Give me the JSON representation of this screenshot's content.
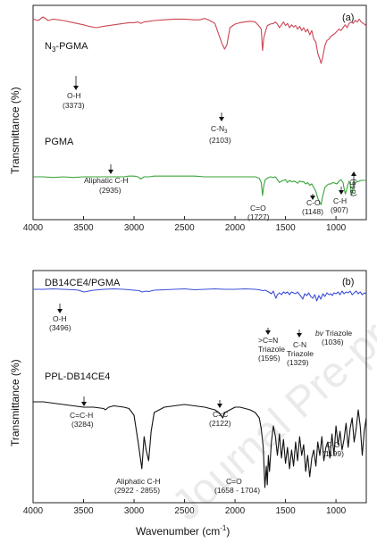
{
  "watermark": "Journal Pre-proof",
  "chart_data": [
    {
      "type": "line",
      "panel_label": "(a)",
      "xlabel": "",
      "ylabel": "Transmittance (%)",
      "xlim": [
        4000,
        700
      ],
      "x_ticks": [
        4000,
        3500,
        3000,
        2500,
        2000,
        1500,
        1000
      ],
      "series": [
        {
          "name": "N3-PGMA",
          "name_main": "N",
          "name_sub": "3",
          "name_rest": "-PGMA",
          "color": "#cc4452",
          "x": [
            4000,
            3950,
            3900,
            3850,
            3800,
            3700,
            3600,
            3500,
            3450,
            3373,
            3300,
            3200,
            3100,
            3050,
            3000,
            2960,
            2935,
            2900,
            2850,
            2800,
            2700,
            2600,
            2500,
            2400,
            2350,
            2300,
            2250,
            2200,
            2160,
            2130,
            2103,
            2080,
            2050,
            2000,
            1950,
            1900,
            1850,
            1800,
            1760,
            1740,
            1727,
            1715,
            1700,
            1680,
            1650,
            1620,
            1600,
            1580,
            1560,
            1540,
            1520,
            1500,
            1480,
            1460,
            1440,
            1420,
            1400,
            1380,
            1360,
            1340,
            1320,
            1300,
            1280,
            1260,
            1240,
            1220,
            1200,
            1180,
            1160,
            1148,
            1130,
            1110,
            1090,
            1070,
            1050,
            1030,
            1010,
            990,
            970,
            950,
            930,
            910,
            890,
            870,
            850,
            830,
            810,
            790,
            770,
            750,
            730,
            710,
            700
          ],
          "y": [
            92,
            90,
            95,
            90,
            92,
            90,
            87,
            84,
            82,
            80,
            82,
            84,
            86,
            87,
            87,
            88,
            86,
            88,
            89,
            90,
            91,
            92,
            92,
            91,
            91,
            93,
            90,
            86,
            70,
            58,
            50,
            56,
            80,
            85,
            87,
            88,
            89,
            88,
            82,
            78,
            48,
            66,
            74,
            83,
            85,
            86,
            88,
            85,
            80,
            84,
            88,
            83,
            86,
            80,
            84,
            81,
            83,
            78,
            82,
            76,
            80,
            74,
            78,
            70,
            76,
            64,
            60,
            44,
            36,
            30,
            40,
            55,
            62,
            64,
            68,
            70,
            72,
            75,
            78,
            76,
            80,
            84,
            80,
            86,
            88,
            86,
            90,
            88,
            92,
            88,
            86,
            84,
            82
          ]
        },
        {
          "name": "PGMA",
          "color": "#3aa33a",
          "x": [
            4000,
            3900,
            3800,
            3700,
            3600,
            3500,
            3400,
            3300,
            3200,
            3100,
            3050,
            3000,
            2960,
            2935,
            2900,
            2850,
            2800,
            2700,
            2600,
            2500,
            2400,
            2300,
            2200,
            2100,
            2000,
            1900,
            1850,
            1800,
            1760,
            1740,
            1727,
            1715,
            1700,
            1680,
            1650,
            1620,
            1600,
            1580,
            1560,
            1540,
            1520,
            1500,
            1480,
            1460,
            1440,
            1420,
            1400,
            1380,
            1360,
            1340,
            1320,
            1300,
            1280,
            1260,
            1240,
            1220,
            1200,
            1180,
            1160,
            1148,
            1130,
            1110,
            1090,
            1070,
            1050,
            1030,
            1010,
            990,
            970,
            950,
            930,
            920,
            907,
            895,
            880,
            870,
            860,
            845,
            830,
            810,
            790,
            770,
            750,
            730,
            710,
            700
          ],
          "y": [
            40,
            40,
            39,
            40,
            39,
            40,
            40,
            40,
            40,
            40,
            41,
            41,
            40,
            37,
            40,
            40,
            41,
            41,
            41,
            41,
            41,
            40,
            40,
            40,
            40,
            40,
            40,
            40,
            38,
            32,
            14,
            28,
            36,
            38,
            40,
            39,
            40,
            36,
            32,
            34,
            35,
            36,
            32,
            35,
            33,
            34,
            33,
            31,
            34,
            33,
            33,
            30,
            32,
            28,
            30,
            25,
            20,
            10,
            4,
            1,
            14,
            25,
            28,
            30,
            30,
            32,
            31,
            30,
            34,
            36,
            32,
            24,
            16,
            22,
            30,
            34,
            30,
            14,
            26,
            32,
            33,
            34,
            35,
            35,
            35,
            35
          ]
        }
      ],
      "annotations": [
        {
          "text": "O-H",
          "value": "(3373)"
        },
        {
          "text": "C-N",
          "sub": "3",
          "value": "(2103)"
        },
        {
          "text": "Aliphatic C-H",
          "value": "(2935)"
        },
        {
          "text": "C=O",
          "value": "(1727)"
        },
        {
          "text": "C-O",
          "value": "(1148)"
        },
        {
          "text": "C-H",
          "value": "(907)"
        },
        {
          "text": "",
          "value": "(845)"
        }
      ]
    },
    {
      "type": "line",
      "panel_label": "(b)",
      "xlabel": "Wavenumber (cm⁻¹)",
      "xlabel_main": "Wavenumber (cm",
      "xlabel_sup": "-1",
      "xlabel_close": ")",
      "ylabel": "Transmittance (%)",
      "xlim": [
        4000,
        700
      ],
      "x_ticks": [
        4000,
        3500,
        3000,
        2500,
        2000,
        1500,
        1000
      ],
      "series": [
        {
          "name": "DB14CE4/PGMA",
          "color": "#3b4fd8",
          "x": [
            4000,
            3900,
            3800,
            3700,
            3600,
            3550,
            3496,
            3450,
            3400,
            3300,
            3200,
            3100,
            3000,
            2950,
            2920,
            2880,
            2855,
            2800,
            2700,
            2600,
            2500,
            2400,
            2300,
            2200,
            2100,
            2000,
            1900,
            1800,
            1760,
            1727,
            1700,
            1660,
            1640,
            1620,
            1595,
            1580,
            1560,
            1540,
            1520,
            1500,
            1480,
            1460,
            1440,
            1420,
            1400,
            1380,
            1360,
            1340,
            1329,
            1310,
            1290,
            1270,
            1250,
            1230,
            1210,
            1190,
            1170,
            1150,
            1130,
            1110,
            1090,
            1070,
            1050,
            1036,
            1020,
            1000,
            980,
            960,
            940,
            920,
            900,
            880,
            860,
            840,
            820,
            800,
            780,
            760,
            740,
            720,
            700
          ],
          "y": [
            92,
            92,
            93,
            92,
            91,
            90,
            86,
            88,
            90,
            92,
            93,
            92,
            90,
            89,
            86,
            88,
            87,
            90,
            91,
            92,
            93,
            91,
            92,
            93,
            92,
            92,
            93,
            92,
            91,
            89,
            90,
            85,
            82,
            88,
            72,
            80,
            84,
            80,
            86,
            83,
            86,
            80,
            86,
            84,
            82,
            86,
            80,
            74,
            70,
            82,
            78,
            84,
            76,
            72,
            80,
            66,
            78,
            70,
            82,
            76,
            84,
            80,
            82,
            78,
            84,
            82,
            86,
            80,
            88,
            82,
            86,
            84,
            88,
            80,
            84,
            88,
            82,
            86,
            80,
            84,
            82
          ]
        },
        {
          "name": "PPL-DB14CE4",
          "color": "#111111",
          "x": [
            4000,
            3900,
            3800,
            3700,
            3600,
            3500,
            3400,
            3300,
            3284,
            3250,
            3200,
            3100,
            3050,
            3000,
            2960,
            2922,
            2900,
            2880,
            2855,
            2830,
            2800,
            2700,
            2600,
            2500,
            2400,
            2300,
            2200,
            2160,
            2122,
            2100,
            2050,
            2000,
            1950,
            1900,
            1850,
            1800,
            1760,
            1740,
            1720,
            1704,
            1690,
            1680,
            1670,
            1658,
            1640,
            1620,
            1600,
            1580,
            1560,
            1540,
            1520,
            1500,
            1480,
            1460,
            1440,
            1420,
            1400,
            1380,
            1360,
            1340,
            1320,
            1300,
            1280,
            1260,
            1240,
            1220,
            1199,
            1180,
            1160,
            1140,
            1120,
            1100,
            1080,
            1060,
            1040,
            1020,
            1000,
            980,
            960,
            940,
            920,
            900,
            880,
            860,
            840,
            820,
            800,
            780,
            760,
            740,
            720,
            700
          ],
          "y": [
            70,
            70,
            69,
            68,
            67,
            66,
            66,
            65,
            64,
            66,
            67,
            66,
            65,
            60,
            40,
            20,
            44,
            34,
            26,
            48,
            62,
            66,
            67,
            68,
            67,
            66,
            64,
            62,
            58,
            62,
            64,
            66,
            66,
            65,
            64,
            62,
            58,
            50,
            36,
            6,
            22,
            8,
            30,
            18,
            40,
            52,
            44,
            30,
            46,
            28,
            42,
            24,
            36,
            20,
            34,
            22,
            40,
            26,
            44,
            30,
            38,
            18,
            30,
            14,
            28,
            34,
            22,
            40,
            30,
            44,
            26,
            36,
            40,
            28,
            46,
            30,
            52,
            38,
            48,
            34,
            42,
            54,
            36,
            50,
            58,
            40,
            50,
            64,
            52,
            30,
            48,
            58
          ]
        }
      ],
      "annotations": [
        {
          "text": "O-H",
          "value": "(3496)"
        },
        {
          "text": "C=C-H",
          "value": "(3284)"
        },
        {
          "text": "C=C",
          "value": "(2122)"
        },
        {
          "text": "Aliphatic C-H",
          "value": "(2922 - 2855)"
        },
        {
          "text": "C=O",
          "value": "(1658 - 1704)"
        },
        {
          "text": ">C=N",
          "text2": "Triazole",
          "value": "(1595)"
        },
        {
          "text": "C-N",
          "text2": "Triazole",
          "value": "(1329)"
        },
        {
          "text_italic": "bv",
          "text": " Triazole",
          "value": "(1036)"
        },
        {
          "text": "C-O",
          "value": "(1199)"
        }
      ]
    }
  ]
}
